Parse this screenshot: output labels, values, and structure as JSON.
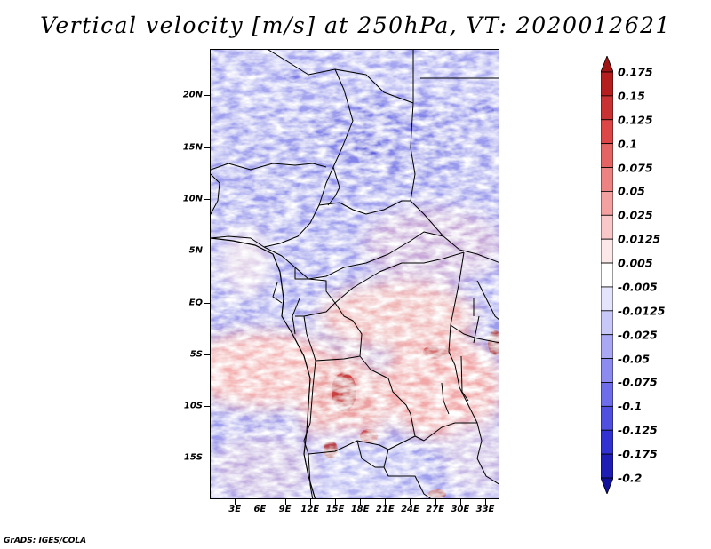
{
  "title": "Vertical velocity [m/s] at 250hPa, VT: 2020012621",
  "map": {
    "region": "Central and Southern Africa",
    "lat_labels": [
      "20N",
      "15N",
      "10N",
      "5N",
      "EQ",
      "5S",
      "10S",
      "15S"
    ],
    "lat_values": [
      20,
      15,
      10,
      5,
      0,
      -5,
      -10,
      -15
    ],
    "lon_labels": [
      "3E",
      "6E",
      "9E",
      "12E",
      "15E",
      "18E",
      "21E",
      "24E",
      "27E",
      "30E",
      "33E"
    ],
    "lon_values": [
      3,
      6,
      9,
      12,
      15,
      18,
      21,
      24,
      27,
      30,
      33
    ],
    "lat_range": [
      -19,
      24.5
    ],
    "lon_range": [
      0,
      34.7
    ]
  },
  "colorbar": {
    "labels": [
      "0.175",
      "0.15",
      "0.125",
      "0.1",
      "0.075",
      "0.05",
      "0.025",
      "0.0125",
      "0.005",
      "-0.005",
      "-0.0125",
      "-0.025",
      "-0.05",
      "-0.075",
      "-0.1",
      "-0.125",
      "-0.175",
      "-0.2"
    ],
    "colors": [
      "#a01414",
      "#b41e1e",
      "#c83232",
      "#dc4646",
      "#e46464",
      "#ec8282",
      "#f2a0a0",
      "#f8c8c8",
      "#fce8e8",
      "#ffffff",
      "#e4e4fc",
      "#c8c8f8",
      "#a8a8f4",
      "#8c8cf0",
      "#6e6eea",
      "#5050e0",
      "#3232d2",
      "#1e1eb4",
      "#10109a"
    ]
  },
  "footer": "GrADS: IGES/COLA"
}
